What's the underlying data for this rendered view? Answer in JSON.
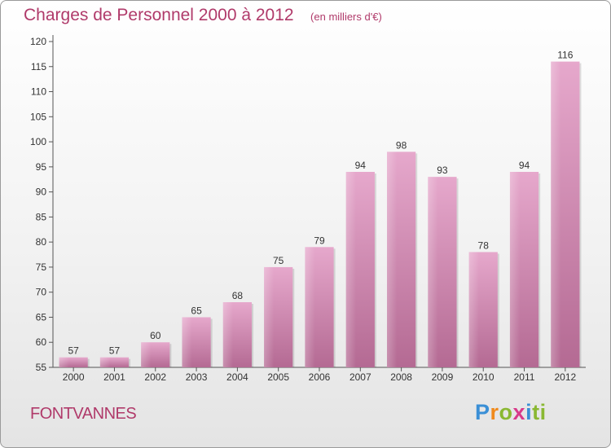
{
  "chart_data": {
    "type": "bar",
    "title": "Charges de Personnel 2000 à 2012",
    "subtitle": "(en milliers d'€)",
    "categories": [
      "2000",
      "2001",
      "2002",
      "2003",
      "2004",
      "2005",
      "2006",
      "2007",
      "2008",
      "2009",
      "2010",
      "2011",
      "2012"
    ],
    "values": [
      57,
      57,
      60,
      65,
      68,
      75,
      79,
      94,
      98,
      93,
      78,
      94,
      116
    ],
    "ylim": [
      55,
      120
    ],
    "yticks": [
      55,
      60,
      65,
      70,
      75,
      80,
      85,
      90,
      95,
      100,
      105,
      110,
      115,
      120
    ],
    "grid": false,
    "bar_color": "#c9709f"
  },
  "footer": {
    "town": "FONTVANNES"
  },
  "logo": {
    "letters": [
      "P",
      "r",
      "o",
      "x",
      "i",
      "t",
      "i"
    ]
  }
}
